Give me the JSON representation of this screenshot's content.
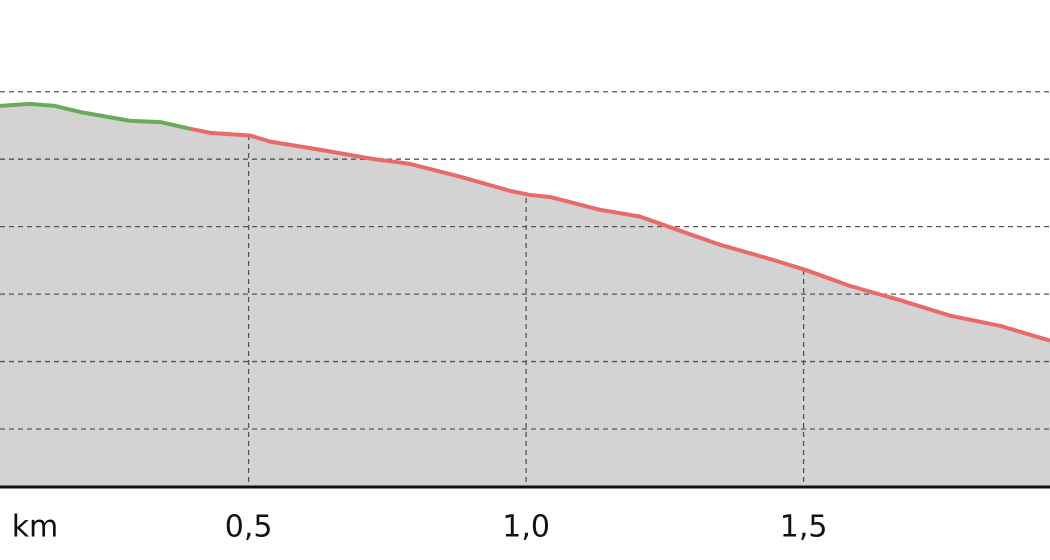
{
  "chart_data": {
    "type": "area",
    "x_label": "km",
    "xlim": [
      0.052,
      1.944
    ],
    "xticks": [
      {
        "value": 0.5,
        "label": "0,5"
      },
      {
        "value": 1.0,
        "label": "1,0"
      },
      {
        "value": 1.5,
        "label": "1,5"
      }
    ],
    "ylim": [
      0.14,
      7.36
    ],
    "yticks": [
      1,
      2,
      3,
      4,
      5,
      6
    ],
    "grid": true,
    "fill_color": "#d3d3d3",
    "series": [
      {
        "color": "#6aab5a",
        "x": [
          0.052,
          0.106,
          0.151,
          0.196,
          0.286,
          0.341,
          0.395
        ],
        "values": [
          5.79,
          5.82,
          5.79,
          5.7,
          5.57,
          5.55,
          5.45
        ]
      },
      {
        "color": "#e86a6a",
        "x": [
          0.395,
          0.431,
          0.503,
          0.539,
          0.629,
          0.719,
          0.791,
          0.881,
          0.971,
          1.007,
          1.043,
          1.133,
          1.205,
          1.277,
          1.35,
          1.44,
          1.503,
          1.584,
          1.674,
          1.764,
          1.854,
          1.944
        ],
        "values": [
          5.45,
          5.39,
          5.35,
          5.26,
          5.14,
          5.01,
          4.93,
          4.74,
          4.53,
          4.47,
          4.44,
          4.25,
          4.15,
          3.94,
          3.73,
          3.52,
          3.36,
          3.12,
          2.91,
          2.68,
          2.53,
          2.31
        ]
      }
    ]
  }
}
